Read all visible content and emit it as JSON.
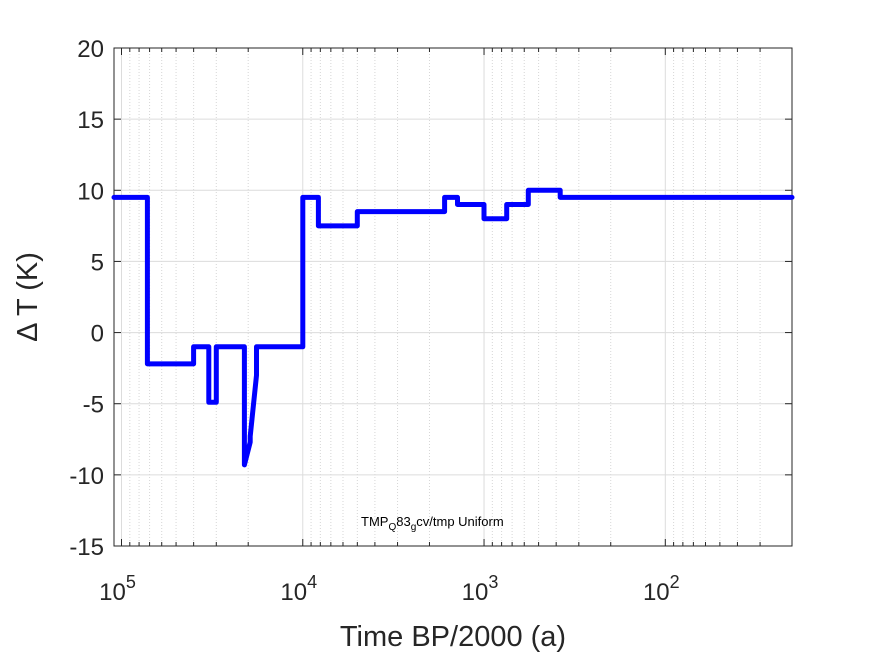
{
  "chart_data": {
    "type": "line",
    "xlabel": "Time BP/2000 (a)",
    "ylabel_symbol": "Δ",
    "ylabel_text": " T (K)",
    "x_scale": "log",
    "x_reversed": true,
    "xlim": [
      110000,
      20
    ],
    "ylim": [
      -15,
      20
    ],
    "yticks": [
      20,
      15,
      10,
      5,
      0,
      -5,
      -10,
      -15
    ],
    "ytick_labels": [
      "20",
      "15",
      "10",
      "5",
      "0",
      "-5",
      "-10",
      "-15"
    ],
    "xticks": [
      {
        "value": 100000,
        "base": "10",
        "exp": "5"
      },
      {
        "value": 10000,
        "base": "10",
        "exp": "4"
      },
      {
        "value": 1000,
        "base": "10",
        "exp": "3"
      },
      {
        "value": 100,
        "base": "10",
        "exp": "2"
      }
    ],
    "grid": true,
    "line_color": "#0000ff",
    "annotation": {
      "prefix": "TMP",
      "sub1": "Q",
      "middle": "83",
      "sub2": "g",
      "suffix": "cv/tmp Uniform"
    },
    "series": [
      {
        "x": [
          110000,
          72000,
          72000,
          40000,
          40000,
          33000,
          33000,
          30000,
          30000,
          21000,
          21000,
          19500,
          19500,
          18000,
          18000,
          17000,
          17000,
          10000,
          10000,
          8200,
          8200,
          5000,
          5000,
          1650,
          1650,
          1400,
          1400,
          1000,
          1000,
          750,
          750,
          570,
          570,
          380,
          380,
          20
        ],
        "y": [
          9.5,
          9.5,
          -2.2,
          -2.2,
          -1.0,
          -1.0,
          -4.9,
          -4.9,
          -1.0,
          -1.0,
          -9.3,
          -7.7,
          -7.3,
          -3.0,
          -1.0,
          -1.0,
          -1.0,
          -1.0,
          9.5,
          9.5,
          7.5,
          7.5,
          8.5,
          8.5,
          9.5,
          9.5,
          9.0,
          9.0,
          8.0,
          8.0,
          9.0,
          9.0,
          10.0,
          10.0,
          9.5,
          9.5
        ]
      }
    ]
  }
}
